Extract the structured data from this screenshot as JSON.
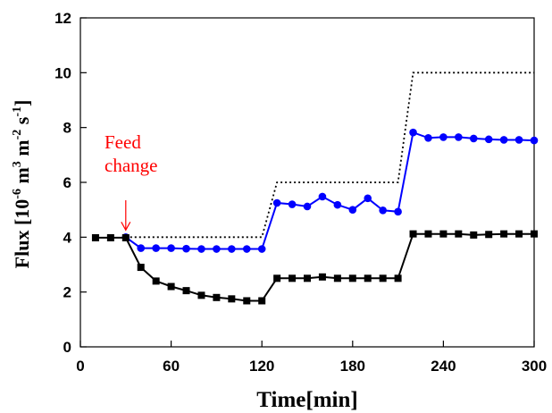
{
  "chart_data": {
    "type": "line",
    "xlabel": "Time[min]",
    "ylabel": {
      "main": "Flux [10",
      "exp1": "-6",
      "mid1": " m",
      "exp2": "3",
      "mid2": " m",
      "exp3": "-2",
      "mid3": " s",
      "exp4": "-1",
      "end": "]"
    },
    "xlim": [
      0,
      300
    ],
    "ylim": [
      0,
      12
    ],
    "xticks": [
      0,
      60,
      120,
      180,
      240,
      300
    ],
    "yticks": [
      0,
      2,
      4,
      6,
      8,
      10,
      12
    ],
    "grid": false,
    "legend": "none",
    "annotation": {
      "lines": [
        "Feed",
        "change"
      ],
      "x": 30,
      "y": 4,
      "color": "#ff0000"
    },
    "series": [
      {
        "style": "dotted",
        "color": "#000000",
        "marker": "none",
        "x": [
          30,
          120,
          130,
          210,
          220,
          300
        ],
        "y": [
          4,
          4,
          6,
          6,
          10,
          10
        ]
      },
      {
        "style": "solid",
        "color": "#0000ff",
        "marker": "circle",
        "x": [
          30,
          40,
          50,
          60,
          70,
          80,
          90,
          100,
          110,
          120,
          130,
          140,
          150,
          160,
          170,
          180,
          190,
          200,
          210,
          220,
          230,
          240,
          250,
          260,
          270,
          280,
          290,
          300
        ],
        "y": [
          4.0,
          3.6,
          3.6,
          3.6,
          3.58,
          3.57,
          3.57,
          3.57,
          3.57,
          3.57,
          5.25,
          5.2,
          5.12,
          5.48,
          5.18,
          5.0,
          5.42,
          4.98,
          4.93,
          7.82,
          7.62,
          7.65,
          7.65,
          7.6,
          7.57,
          7.55,
          7.55,
          7.53
        ]
      },
      {
        "style": "solid",
        "color": "#000000",
        "marker": "square",
        "x": [
          10,
          20,
          30,
          40,
          50,
          60,
          70,
          80,
          90,
          100,
          110,
          120,
          130,
          140,
          150,
          160,
          170,
          180,
          190,
          200,
          210,
          220,
          230,
          240,
          250,
          260,
          270,
          280,
          290,
          300
        ],
        "y": [
          3.98,
          3.98,
          3.98,
          2.9,
          2.4,
          2.2,
          2.05,
          1.88,
          1.8,
          1.75,
          1.68,
          1.68,
          2.5,
          2.5,
          2.5,
          2.55,
          2.5,
          2.5,
          2.5,
          2.5,
          2.5,
          4.12,
          4.12,
          4.12,
          4.12,
          4.08,
          4.1,
          4.12,
          4.12,
          4.12
        ]
      }
    ]
  }
}
